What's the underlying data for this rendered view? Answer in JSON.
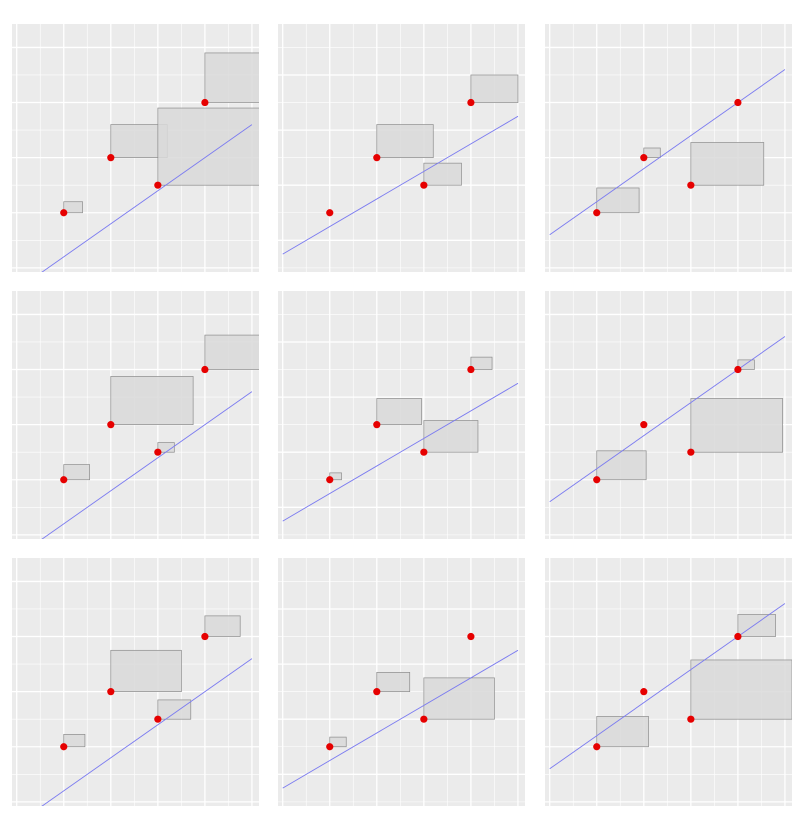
{
  "colors": {
    "panel_bg": "#EBEBEB",
    "grid": "#FFFFFF",
    "point": "#E60000",
    "fit_line": "#7B7BF0",
    "square_fill": "#D9D9D9",
    "square_stroke": "#8C8C8C"
  },
  "chart_data": [
    {
      "type": "scatter",
      "panel": 1,
      "xlim": [
        0.9,
        6.15
      ],
      "ylim": [
        1.85,
        10.85
      ],
      "grid": true,
      "points": [
        {
          "x": 2,
          "y": 4.0
        },
        {
          "x": 3,
          "y": 6.0
        },
        {
          "x": 4,
          "y": 5.0
        },
        {
          "x": 5,
          "y": 8.0
        }
      ],
      "fit_line": {
        "intercept": 0.0,
        "slope": 1.2
      },
      "squares": [
        {
          "x": 2,
          "y": 4.0,
          "side": 0.4
        },
        {
          "x": 3,
          "y": 6.0,
          "side": 1.2
        },
        {
          "x": 4,
          "y": 5.0,
          "side": 2.8
        },
        {
          "x": 5,
          "y": 8.0,
          "side": 1.8
        }
      ]
    },
    {
      "type": "scatter",
      "panel": 2,
      "xlim": [
        0.9,
        6.15
      ],
      "ylim": [
        2.85,
        11.85
      ],
      "grid": true,
      "points": [
        {
          "x": 2,
          "y": 5.0
        },
        {
          "x": 3,
          "y": 7.0
        },
        {
          "x": 4,
          "y": 6.0
        },
        {
          "x": 5,
          "y": 9.0
        }
      ],
      "fit_line": {
        "intercept": 2.5,
        "slope": 1.0
      },
      "squares": [
        {
          "x": 2,
          "y": 5.0,
          "side": 0.0
        },
        {
          "x": 3,
          "y": 7.0,
          "side": 1.2
        },
        {
          "x": 4,
          "y": 6.0,
          "side": 0.8
        },
        {
          "x": 5,
          "y": 9.0,
          "side": 1.0
        }
      ]
    },
    {
      "type": "scatter",
      "panel": 3,
      "xlim": [
        0.9,
        6.15
      ],
      "ylim": [
        3.85,
        12.85
      ],
      "grid": true,
      "points": [
        {
          "x": 2,
          "y": 6.0
        },
        {
          "x": 3,
          "y": 8.0
        },
        {
          "x": 4,
          "y": 7.0
        },
        {
          "x": 5,
          "y": 10.0
        }
      ],
      "fit_line": {
        "intercept": 4.0,
        "slope": 1.2
      },
      "squares": [
        {
          "x": 2,
          "y": 6.0,
          "side": 0.9
        },
        {
          "x": 3,
          "y": 8.0,
          "side": 0.35
        },
        {
          "x": 4,
          "y": 7.0,
          "side": 1.55
        },
        {
          "x": 5,
          "y": 10.0,
          "side": 0.0
        }
      ]
    },
    {
      "type": "scatter",
      "panel": 4,
      "xlim": [
        0.9,
        6.15
      ],
      "ylim": [
        1.85,
        10.85
      ],
      "grid": true,
      "points": [
        {
          "x": 2,
          "y": 4.0
        },
        {
          "x": 3,
          "y": 6.0
        },
        {
          "x": 4,
          "y": 5.0
        },
        {
          "x": 5,
          "y": 8.0
        }
      ],
      "fit_line": {
        "intercept": 0.0,
        "slope": 1.2
      },
      "squares": [
        {
          "x": 2,
          "y": 4.0,
          "side": 0.55
        },
        {
          "x": 3,
          "y": 6.0,
          "side": 1.75
        },
        {
          "x": 4,
          "y": 5.0,
          "side": 0.35
        },
        {
          "x": 5,
          "y": 8.0,
          "side": 1.25
        }
      ]
    },
    {
      "type": "scatter",
      "panel": 5,
      "xlim": [
        0.9,
        6.15
      ],
      "ylim": [
        2.85,
        11.85
      ],
      "grid": true,
      "points": [
        {
          "x": 2,
          "y": 5.0
        },
        {
          "x": 3,
          "y": 7.0
        },
        {
          "x": 4,
          "y": 6.0
        },
        {
          "x": 5,
          "y": 9.0
        }
      ],
      "fit_line": {
        "intercept": 2.5,
        "slope": 1.0
      },
      "squares": [
        {
          "x": 2,
          "y": 5.0,
          "side": 0.25
        },
        {
          "x": 3,
          "y": 7.0,
          "side": 0.95
        },
        {
          "x": 4,
          "y": 6.0,
          "side": 1.15
        },
        {
          "x": 5,
          "y": 9.0,
          "side": 0.45
        }
      ]
    },
    {
      "type": "scatter",
      "panel": 6,
      "xlim": [
        0.9,
        6.15
      ],
      "ylim": [
        3.85,
        12.85
      ],
      "grid": true,
      "points": [
        {
          "x": 2,
          "y": 6.0
        },
        {
          "x": 3,
          "y": 8.0
        },
        {
          "x": 4,
          "y": 7.0
        },
        {
          "x": 5,
          "y": 10.0
        }
      ],
      "fit_line": {
        "intercept": 4.0,
        "slope": 1.2
      },
      "squares": [
        {
          "x": 2,
          "y": 6.0,
          "side": 1.05
        },
        {
          "x": 3,
          "y": 8.0,
          "side": 0.0
        },
        {
          "x": 4,
          "y": 7.0,
          "side": 1.95
        },
        {
          "x": 5,
          "y": 10.0,
          "side": 0.35
        }
      ]
    },
    {
      "type": "scatter",
      "panel": 7,
      "xlim": [
        0.9,
        6.15
      ],
      "ylim": [
        1.85,
        10.85
      ],
      "grid": true,
      "points": [
        {
          "x": 2,
          "y": 4.0
        },
        {
          "x": 3,
          "y": 6.0
        },
        {
          "x": 4,
          "y": 5.0
        },
        {
          "x": 5,
          "y": 8.0
        }
      ],
      "fit_line": {
        "intercept": 0.0,
        "slope": 1.2
      },
      "squares": [
        {
          "x": 2,
          "y": 4.0,
          "side": 0.45
        },
        {
          "x": 3,
          "y": 6.0,
          "side": 1.5
        },
        {
          "x": 4,
          "y": 5.0,
          "side": 0.7
        },
        {
          "x": 5,
          "y": 8.0,
          "side": 0.75
        }
      ]
    },
    {
      "type": "scatter",
      "panel": 8,
      "xlim": [
        0.9,
        6.15
      ],
      "ylim": [
        2.85,
        11.85
      ],
      "grid": true,
      "points": [
        {
          "x": 2,
          "y": 5.0
        },
        {
          "x": 3,
          "y": 7.0
        },
        {
          "x": 4,
          "y": 6.0
        },
        {
          "x": 5,
          "y": 9.0
        }
      ],
      "fit_line": {
        "intercept": 2.5,
        "slope": 1.0
      },
      "squares": [
        {
          "x": 2,
          "y": 5.0,
          "side": 0.35
        },
        {
          "x": 3,
          "y": 7.0,
          "side": 0.7
        },
        {
          "x": 4,
          "y": 6.0,
          "side": 1.5
        },
        {
          "x": 5,
          "y": 9.0,
          "side": 0.0
        }
      ]
    },
    {
      "type": "scatter",
      "panel": 9,
      "xlim": [
        0.9,
        6.15
      ],
      "ylim": [
        3.85,
        12.85
      ],
      "grid": true,
      "points": [
        {
          "x": 2,
          "y": 6.0
        },
        {
          "x": 3,
          "y": 8.0
        },
        {
          "x": 4,
          "y": 7.0
        },
        {
          "x": 5,
          "y": 10.0
        }
      ],
      "fit_line": {
        "intercept": 4.0,
        "slope": 1.2
      },
      "squares": [
        {
          "x": 2,
          "y": 6.0,
          "side": 1.1
        },
        {
          "x": 3,
          "y": 8.0,
          "side": 0.0
        },
        {
          "x": 4,
          "y": 7.0,
          "side": 2.15
        },
        {
          "x": 5,
          "y": 10.0,
          "side": 0.8
        }
      ]
    }
  ]
}
